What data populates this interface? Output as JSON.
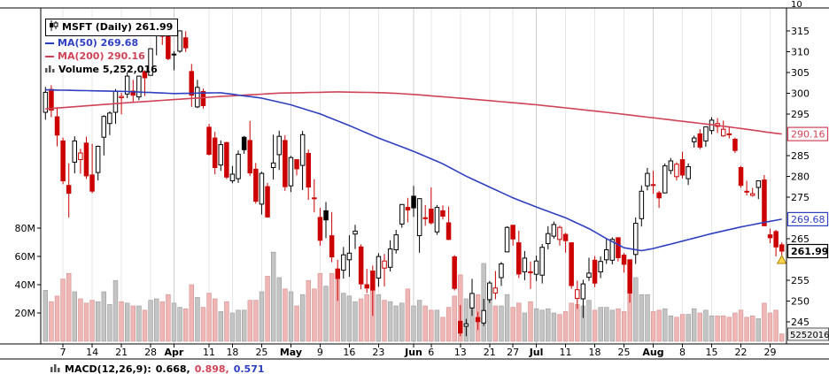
{
  "legend": {
    "symbol_label": "MSFT (Daily) 261.99",
    "ma50_label": "MA(50) 269.68",
    "ma200_label": "MA(200) 290.16",
    "volume_label": "Volume 5,252,016"
  },
  "macd": {
    "label": "MACD(12,26,9):",
    "values": [
      "0.668,",
      "0.898,",
      "0.571"
    ]
  },
  "panes": {
    "top_axis_partial_label": "10",
    "volume_axis_current_box": "5252016"
  },
  "price_boxes": [
    {
      "label": "290.16",
      "price": 290.16,
      "color": "#d04358",
      "bold": false
    },
    {
      "label": "269.68",
      "price": 269.68,
      "color": "#2f3fc1",
      "bold": false
    },
    {
      "label": "261.99",
      "price": 261.99,
      "color": "#000000",
      "bold": true
    }
  ],
  "axes": {
    "price_tick_values": [
      315,
      310,
      305,
      300,
      295,
      285,
      280,
      275,
      265,
      255,
      250,
      245
    ],
    "volume_ticks": [
      {
        "label": "80M",
        "v": 80
      },
      {
        "label": "60M",
        "v": 60
      },
      {
        "label": "40M",
        "v": 40
      },
      {
        "label": "20M",
        "v": 20
      }
    ],
    "x_ticks": [
      {
        "i": 3,
        "label": "7",
        "month": false
      },
      {
        "i": 8,
        "label": "14",
        "month": false
      },
      {
        "i": 13,
        "label": "21",
        "month": false
      },
      {
        "i": 18,
        "label": "28",
        "month": false
      },
      {
        "i": 22,
        "label": "Apr",
        "month": true
      },
      {
        "i": 28,
        "label": "11",
        "month": false
      },
      {
        "i": 32,
        "label": "18",
        "month": false
      },
      {
        "i": 37,
        "label": "25",
        "month": false
      },
      {
        "i": 42,
        "label": "May",
        "month": true
      },
      {
        "i": 47,
        "label": "9",
        "month": false
      },
      {
        "i": 52,
        "label": "16",
        "month": false
      },
      {
        "i": 57,
        "label": "23",
        "month": false
      },
      {
        "i": 63,
        "label": "Jun",
        "month": true
      },
      {
        "i": 66,
        "label": "6",
        "month": false
      },
      {
        "i": 71,
        "label": "13",
        "month": false
      },
      {
        "i": 76,
        "label": "21",
        "month": false
      },
      {
        "i": 80,
        "label": "27",
        "month": false
      },
      {
        "i": 84,
        "label": "Jul",
        "month": true
      },
      {
        "i": 89,
        "label": "11",
        "month": false
      },
      {
        "i": 94,
        "label": "18",
        "month": false
      },
      {
        "i": 99,
        "label": "25",
        "month": false
      },
      {
        "i": 104,
        "label": "Aug",
        "month": true
      },
      {
        "i": 109,
        "label": "8",
        "month": false
      },
      {
        "i": 114,
        "label": "15",
        "month": false
      },
      {
        "i": 119,
        "label": "22",
        "month": false
      },
      {
        "i": 124,
        "label": "29",
        "month": false
      }
    ]
  },
  "chart_data": {
    "type": "candlestick",
    "symbol": "MSFT",
    "timeframe": "Daily",
    "last_price": 261.99,
    "ma50_value": 269.68,
    "ma200_value": 290.16,
    "current_volume": "5,252,016",
    "ylim": [
      240.5,
      320.5
    ],
    "volume_axis_millions": [
      0,
      100
    ],
    "colors": {
      "up": "#000000",
      "down": "#cc0000",
      "ma50": "#2f3fc1",
      "ma200": "#d04358",
      "vol_up_fill": "#c4c4c4",
      "vol_up_stroke": "#9a9a9a",
      "vol_down_fill": "#efb6b6",
      "vol_down_stroke": "#d68f8f",
      "marker": "#ffd54d",
      "marker_stroke": "#a98200"
    },
    "candles_format": [
      "date",
      "open",
      "high",
      "low",
      "close",
      "volume_millions"
    ],
    "candles": [
      [
        "Mar 2",
        295.4,
        301.5,
        293.6,
        300.2,
        36
      ],
      [
        "Mar 3",
        300.9,
        301.9,
        294.2,
        295.9,
        28
      ],
      [
        "Mar 4",
        294.3,
        296.6,
        287.2,
        289.9,
        32
      ],
      [
        "Mar 7",
        288.5,
        289.3,
        278.1,
        278.9,
        44
      ],
      [
        "Mar 8",
        277.8,
        283.1,
        270.1,
        275.9,
        48
      ],
      [
        "Mar 9",
        283.4,
        289.6,
        280.7,
        288.5,
        35
      ],
      [
        "Mar 10",
        284.0,
        286.6,
        280.6,
        285.6,
        30
      ],
      [
        "Mar 11",
        288.0,
        289.5,
        279.4,
        280.1,
        27
      ],
      [
        "Mar 14",
        280.3,
        287.8,
        275.9,
        276.4,
        29
      ],
      [
        "Mar 15",
        280.9,
        287.4,
        279.0,
        287.2,
        28
      ],
      [
        "Mar 16",
        289.4,
        294.7,
        285.0,
        294.4,
        35
      ],
      [
        "Mar 17",
        292.7,
        295.6,
        289.9,
        295.2,
        26
      ],
      [
        "Mar 18",
        295.4,
        301.0,
        292.6,
        300.4,
        43
      ],
      [
        "Mar 21",
        298.9,
        300.1,
        294.9,
        299.2,
        28
      ],
      [
        "Mar 22",
        299.8,
        305.0,
        298.8,
        304.1,
        27
      ],
      [
        "Mar 23",
        300.5,
        303.2,
        297.7,
        299.5,
        25
      ],
      [
        "Mar 24",
        299.1,
        304.2,
        298.3,
        304.1,
        25
      ],
      [
        "Mar 25",
        305.2,
        305.5,
        299.3,
        303.7,
        22
      ],
      [
        "Mar 28",
        304.3,
        310.8,
        304.3,
        310.7,
        29
      ],
      [
        "Mar 29",
        313.9,
        315.8,
        309.1,
        315.4,
        30
      ],
      [
        "Mar 30",
        313.8,
        316.0,
        311.6,
        313.9,
        28
      ],
      [
        "Mar 31",
        313.9,
        315.1,
        307.9,
        308.3,
        33
      ],
      [
        "Apr 1",
        309.4,
        310.1,
        305.5,
        309.4,
        27
      ],
      [
        "Apr 4",
        310.1,
        315.1,
        309.7,
        315.0,
        24
      ],
      [
        "Apr 5",
        313.3,
        314.9,
        309.9,
        310.9,
        23
      ],
      [
        "Apr 6",
        305.2,
        307.0,
        296.7,
        299.5,
        40
      ],
      [
        "Apr 7",
        296.7,
        303.2,
        296.4,
        301.4,
        31
      ],
      [
        "Apr 8",
        300.4,
        301.1,
        296.3,
        297.0,
        24
      ],
      [
        "Apr 11",
        291.8,
        292.6,
        285.0,
        285.3,
        34
      ],
      [
        "Apr 12",
        289.2,
        290.7,
        280.5,
        282.1,
        30
      ],
      [
        "Apr 13",
        282.7,
        288.6,
        281.3,
        287.6,
        21
      ],
      [
        "Apr 14",
        288.1,
        288.3,
        279.3,
        279.8,
        28
      ],
      [
        "Apr 18",
        278.9,
        282.5,
        278.3,
        280.5,
        20
      ],
      [
        "Apr 19",
        279.4,
        286.2,
        278.4,
        285.3,
        22
      ],
      [
        "Apr 20",
        289.4,
        289.7,
        285.4,
        286.4,
        22
      ],
      [
        "Apr 21",
        288.6,
        293.3,
        280.1,
        280.8,
        29
      ],
      [
        "Apr 22",
        281.7,
        283.2,
        273.4,
        274.0,
        29
      ],
      [
        "Apr 25",
        273.3,
        281.1,
        270.8,
        280.7,
        35
      ],
      [
        "Apr 26",
        277.5,
        278.4,
        270.0,
        270.2,
        46
      ],
      [
        "Apr 27",
        282.1,
        290.0,
        279.2,
        283.2,
        63
      ],
      [
        "Apr 28",
        285.2,
        291.0,
        281.5,
        289.6,
        45
      ],
      [
        "Apr 29",
        288.6,
        289.9,
        276.5,
        277.5,
        37
      ],
      [
        "May 2",
        277.7,
        284.9,
        276.2,
        284.5,
        35
      ],
      [
        "May 3",
        284.0,
        284.1,
        280.2,
        281.8,
        25
      ],
      [
        "May 4",
        282.6,
        290.9,
        276.7,
        290.0,
        33
      ],
      [
        "May 5",
        285.5,
        286.4,
        274.3,
        277.4,
        43
      ],
      [
        "May 6",
        274.8,
        279.3,
        271.3,
        274.7,
        37
      ],
      [
        "May 9",
        270.1,
        272.4,
        263.3,
        264.6,
        48
      ],
      [
        "May 10",
        271.7,
        273.8,
        265.1,
        269.5,
        39
      ],
      [
        "May 11",
        265.7,
        271.4,
        259.3,
        260.6,
        48
      ],
      [
        "May 12",
        257.7,
        259.9,
        250.0,
        255.4,
        51
      ],
      [
        "May 13",
        257.4,
        263.0,
        255.4,
        261.1,
        34
      ],
      [
        "May 16",
        259.9,
        265.8,
        255.8,
        261.5,
        32
      ],
      [
        "May 17",
        266.1,
        268.3,
        262.5,
        266.8,
        28
      ],
      [
        "May 18",
        263.0,
        263.6,
        252.8,
        254.1,
        30
      ],
      [
        "May 19",
        253.9,
        257.7,
        251.9,
        253.1,
        33
      ],
      [
        "May 20",
        257.2,
        258.5,
        246.4,
        252.6,
        39
      ],
      [
        "May 23",
        255.5,
        261.5,
        253.4,
        260.7,
        33
      ],
      [
        "May 24",
        257.9,
        261.3,
        253.5,
        259.6,
        29
      ],
      [
        "May 25",
        258.1,
        264.6,
        257.1,
        262.5,
        28
      ],
      [
        "May 26",
        262.3,
        267.1,
        261.4,
        265.9,
        25
      ],
      [
        "May 27",
        268.5,
        273.3,
        267.6,
        273.2,
        27
      ],
      [
        "May 31",
        272.5,
        274.8,
        268.9,
        271.9,
        37
      ],
      [
        "Jun 1",
        275.2,
        277.7,
        270.2,
        272.4,
        25
      ],
      [
        "Jun 2",
        265.7,
        274.7,
        261.6,
        274.6,
        29
      ],
      [
        "Jun 3",
        269.8,
        273.1,
        268.1,
        270.0,
        25
      ],
      [
        "Jun 6",
        272.1,
        277.3,
        268.4,
        268.8,
        22
      ],
      [
        "Jun 7",
        266.6,
        273.1,
        265.9,
        272.5,
        22
      ],
      [
        "Jun 8",
        271.7,
        273.0,
        269.6,
        270.4,
        17
      ],
      [
        "Jun 9",
        268.8,
        272.7,
        264.6,
        264.8,
        24
      ],
      [
        "Jun 10",
        260.6,
        261.0,
        252.5,
        253.0,
        32
      ],
      [
        "Jun 13",
        245.1,
        249.0,
        241.5,
        242.3,
        47
      ],
      [
        "Jun 14",
        243.9,
        245.7,
        241.5,
        244.5,
        30
      ],
      [
        "Jun 15",
        248.3,
        255.3,
        246.4,
        251.8,
        33
      ],
      [
        "Jun 16",
        246.0,
        247.4,
        243.0,
        245.0,
        33
      ],
      [
        "Jun 17",
        244.7,
        250.5,
        244.0,
        247.7,
        55
      ],
      [
        "Jun 21",
        250.3,
        254.8,
        249.5,
        254.3,
        29
      ],
      [
        "Jun 22",
        251.9,
        257.2,
        250.4,
        253.1,
        25
      ],
      [
        "Jun 23",
        255.6,
        259.4,
        253.6,
        258.9,
        25
      ],
      [
        "Jun 24",
        261.8,
        268.0,
        261.7,
        267.7,
        33
      ],
      [
        "Jun 27",
        268.2,
        268.3,
        263.3,
        264.9,
        24
      ],
      [
        "Jun 28",
        264.0,
        266.9,
        255.5,
        256.5,
        27
      ],
      [
        "Jun 29",
        257.0,
        262.0,
        255.0,
        260.3,
        20
      ],
      [
        "Jun 30",
        257.0,
        259.5,
        252.9,
        256.8,
        28
      ],
      [
        "Jul 1",
        256.4,
        260.9,
        254.8,
        259.6,
        23
      ],
      [
        "Jul 5",
        256.2,
        263.7,
        254.2,
        262.9,
        22
      ],
      [
        "Jul 6",
        263.8,
        268.0,
        262.4,
        266.2,
        23
      ],
      [
        "Jul 7",
        265.6,
        269.1,
        265.0,
        268.4,
        20
      ],
      [
        "Jul 8",
        264.8,
        268.1,
        263.3,
        267.7,
        19
      ],
      [
        "Jul 11",
        266.0,
        266.4,
        261.6,
        264.5,
        21
      ],
      [
        "Jul 12",
        264.0,
        264.1,
        252.9,
        253.7,
        27
      ],
      [
        "Jul 13",
        250.6,
        254.9,
        248.1,
        252.7,
        26
      ],
      [
        "Jul 14",
        250.5,
        255.1,
        245.9,
        254.1,
        25
      ],
      [
        "Jul 15",
        255.7,
        260.4,
        254.8,
        256.7,
        29
      ],
      [
        "Jul 18",
        259.8,
        260.8,
        253.3,
        254.3,
        22
      ],
      [
        "Jul 19",
        257.0,
        260.7,
        255.5,
        259.5,
        24
      ],
      [
        "Jul 20",
        259.9,
        264.9,
        258.9,
        262.3,
        24
      ],
      [
        "Jul 21",
        259.8,
        265.3,
        258.8,
        264.8,
        22
      ],
      [
        "Jul 22",
        265.2,
        265.3,
        259.5,
        260.4,
        23
      ],
      [
        "Jul 25",
        261.0,
        261.5,
        256.8,
        258.8,
        21
      ],
      [
        "Jul 26",
        259.9,
        259.9,
        249.6,
        251.9,
        40
      ],
      [
        "Jul 27",
        261.2,
        270.1,
        258.9,
        268.7,
        45
      ],
      [
        "Jul 28",
        269.8,
        277.8,
        267.9,
        276.4,
        33
      ],
      [
        "Jul 29",
        277.7,
        282.0,
        276.6,
        280.7,
        33
      ],
      [
        "Aug 1",
        277.8,
        281.3,
        275.8,
        278.0,
        21
      ],
      [
        "Aug 2",
        276.0,
        276.5,
        272.4,
        274.8,
        22
      ],
      [
        "Aug 3",
        276.0,
        283.1,
        275.9,
        282.5,
        23
      ],
      [
        "Aug 4",
        281.4,
        284.4,
        280.5,
        283.7,
        18
      ],
      [
        "Aug 5",
        279.9,
        283.4,
        279.0,
        282.9,
        17
      ],
      [
        "Aug 8",
        284.0,
        285.9,
        279.5,
        280.3,
        19
      ],
      [
        "Aug 9",
        279.4,
        283.1,
        277.9,
        282.3,
        19
      ],
      [
        "Aug 10",
        288.3,
        289.8,
        286.9,
        289.2,
        23
      ],
      [
        "Aug 11",
        290.2,
        291.3,
        286.5,
        287.0,
        20
      ],
      [
        "Aug 12",
        288.5,
        292.0,
        287.1,
        291.9,
        22
      ],
      [
        "Aug 15",
        291.0,
        294.2,
        290.1,
        293.5,
        18
      ],
      [
        "Aug 16",
        292.0,
        294.0,
        290.4,
        292.7,
        18
      ],
      [
        "Aug 17",
        289.7,
        293.4,
        289.5,
        291.3,
        18
      ],
      [
        "Aug 18",
        290.2,
        291.9,
        289.1,
        290.2,
        17
      ],
      [
        "Aug 19",
        288.9,
        289.3,
        285.6,
        286.2,
        20
      ],
      [
        "Aug 22",
        282.1,
        282.5,
        277.2,
        277.8,
        22
      ],
      [
        "Aug 23",
        276.4,
        278.9,
        275.4,
        276.4,
        17
      ],
      [
        "Aug 24",
        275.4,
        277.2,
        275.1,
        275.8,
        18
      ],
      [
        "Aug 25",
        277.3,
        279.0,
        274.5,
        278.9,
        16
      ],
      [
        "Aug 26",
        279.1,
        280.3,
        268.0,
        268.1,
        27
      ],
      [
        "Aug 29",
        265.9,
        267.4,
        263.9,
        265.2,
        20
      ],
      [
        "Aug 30",
        266.7,
        267.1,
        260.7,
        263.0,
        22
      ],
      [
        "Aug 31",
        263.5,
        264.1,
        261.0,
        261.99,
        5.25
      ]
    ],
    "ma50_points": [
      [
        0,
        300.8
      ],
      [
        14,
        300.4
      ],
      [
        22,
        299.9
      ],
      [
        30,
        300.1
      ],
      [
        37,
        298.8
      ],
      [
        42,
        297.2
      ],
      [
        47,
        295.0
      ],
      [
        52,
        292.2
      ],
      [
        57,
        289.2
      ],
      [
        63,
        286.0
      ],
      [
        68,
        283.0
      ],
      [
        72,
        280.0
      ],
      [
        76,
        277.4
      ],
      [
        80,
        274.8
      ],
      [
        84,
        272.6
      ],
      [
        89,
        270.0
      ],
      [
        93,
        267.4
      ],
      [
        96,
        265.0
      ],
      [
        99,
        262.8
      ],
      [
        102,
        262.1
      ],
      [
        104,
        262.6
      ],
      [
        109,
        264.4
      ],
      [
        114,
        266.2
      ],
      [
        119,
        267.8
      ],
      [
        123,
        268.9
      ],
      [
        126,
        269.68
      ]
    ],
    "ma200_points": [
      [
        0,
        296.2
      ],
      [
        15,
        297.8
      ],
      [
        30,
        299.2
      ],
      [
        40,
        300.0
      ],
      [
        50,
        300.3
      ],
      [
        58,
        300.1
      ],
      [
        63,
        299.7
      ],
      [
        70,
        298.9
      ],
      [
        76,
        298.2
      ],
      [
        84,
        297.2
      ],
      [
        90,
        296.3
      ],
      [
        96,
        295.4
      ],
      [
        102,
        294.4
      ],
      [
        108,
        293.4
      ],
      [
        114,
        292.4
      ],
      [
        119,
        291.5
      ],
      [
        123,
        290.7
      ],
      [
        126,
        290.16
      ]
    ]
  }
}
